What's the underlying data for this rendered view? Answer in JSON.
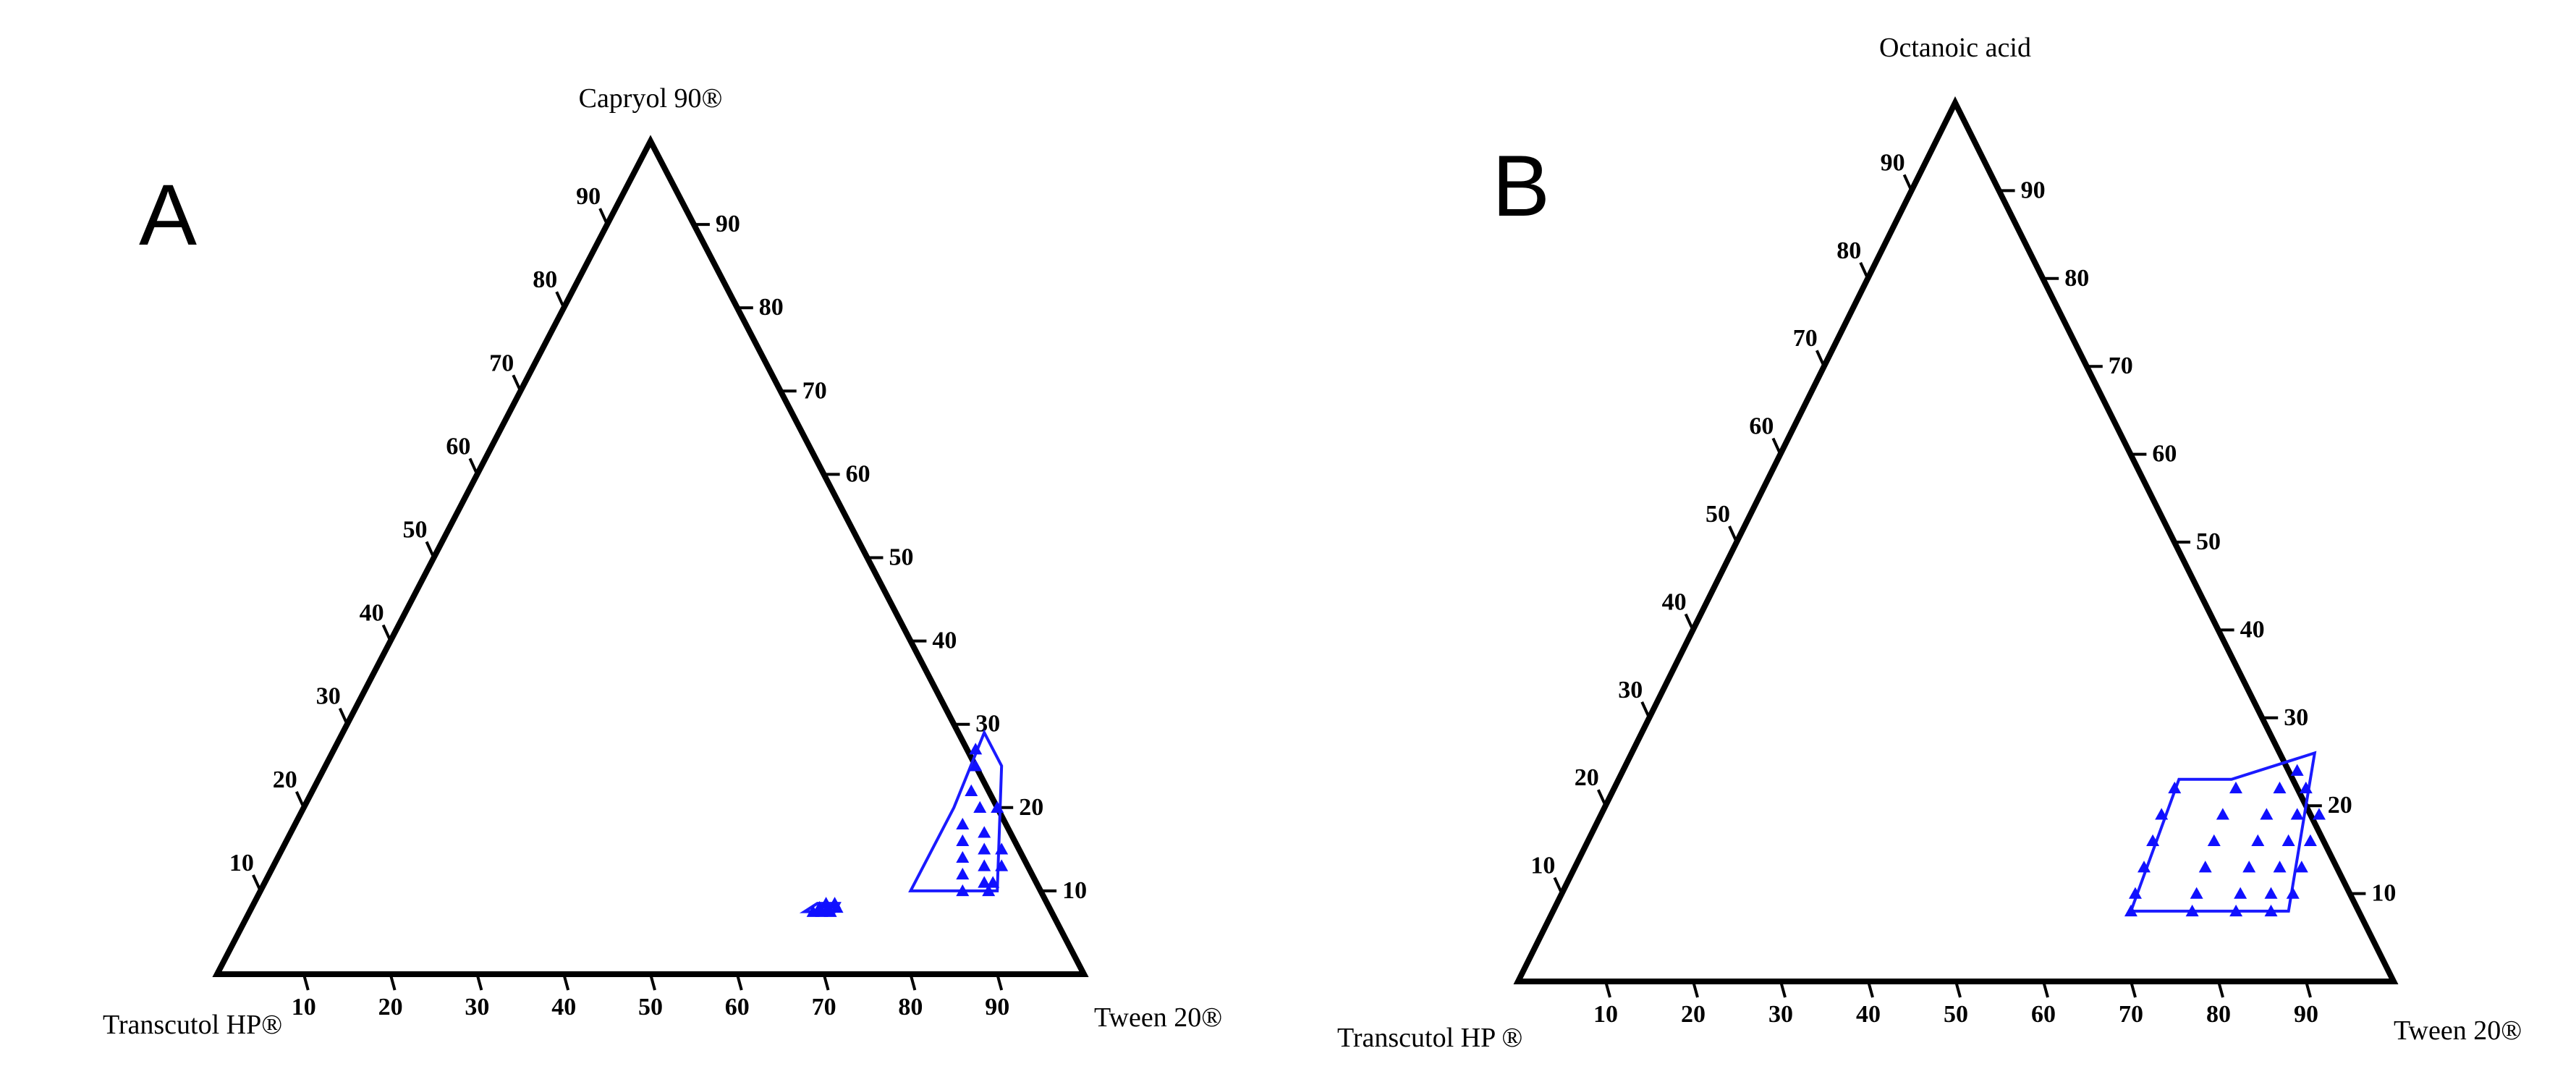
{
  "chart_data": [
    {
      "type": "ternary",
      "panel_label": "A",
      "axes": {
        "top": "Capryol 90®",
        "left": "Transcutol HP®",
        "right": "Tween 20®"
      },
      "ticks": [
        10,
        20,
        30,
        40,
        50,
        60,
        70,
        80,
        90
      ],
      "regions": [
        {
          "boundary": [
            [
              7.5,
              64
            ],
            [
              8.5,
              65
            ],
            [
              8.5,
              67.5
            ],
            [
              7.5,
              67.5
            ]
          ],
          "points": [
            [
              7.5,
              65
            ],
            [
              8,
              65.5
            ],
            [
              8.5,
              66
            ],
            [
              7.5,
              66
            ],
            [
              8,
              66.5
            ],
            [
              8.5,
              67
            ],
            [
              7.5,
              67
            ],
            [
              8,
              67.5
            ]
          ]
        },
        {
          "boundary": [
            [
              10,
              75
            ],
            [
              20,
              75
            ],
            [
              29,
              74
            ],
            [
              25,
              78
            ],
            [
              10,
              85
            ]
          ],
          "points": [
            [
              27,
              74
            ],
            [
              25,
              75
            ],
            [
              22,
              76
            ],
            [
              20,
              78
            ],
            [
              18,
              77
            ],
            [
              16,
              78
            ],
            [
              14,
              79
            ],
            [
              12,
              80
            ],
            [
              10,
              81
            ],
            [
              20,
              80
            ],
            [
              17,
              80
            ],
            [
              15,
              81
            ],
            [
              13,
              82
            ],
            [
              11,
              83
            ],
            [
              15,
              83
            ],
            [
              13,
              84
            ],
            [
              11,
              84
            ],
            [
              10,
              84
            ]
          ]
        }
      ]
    },
    {
      "type": "ternary",
      "panel_label": "B",
      "axes": {
        "top": "Octanoic acid",
        "left": "Transcutol HP ®",
        "right": "Tween 20®"
      },
      "ticks": [
        10,
        20,
        30,
        40,
        50,
        60,
        70,
        80,
        90
      ],
      "regions": [
        {
          "boundary": [
            [
              23,
              64
            ],
            [
              23,
              70
            ],
            [
              26,
              78
            ],
            [
              8,
              84
            ],
            [
              8,
              66
            ]
          ],
          "points": [
            [
              22,
              64
            ],
            [
              19,
              64
            ],
            [
              16,
              64.5
            ],
            [
              13,
              65
            ],
            [
              10,
              65.5
            ],
            [
              8,
              66
            ],
            [
              22,
              71
            ],
            [
              19,
              71
            ],
            [
              16,
              71.5
            ],
            [
              13,
              72
            ],
            [
              10,
              72.5
            ],
            [
              8,
              73
            ],
            [
              24,
              77
            ],
            [
              22,
              76
            ],
            [
              19,
              76
            ],
            [
              16,
              76.5
            ],
            [
              13,
              77
            ],
            [
              10,
              77.5
            ],
            [
              8,
              78
            ],
            [
              22,
              79
            ],
            [
              19,
              79.5
            ],
            [
              16,
              80
            ],
            [
              13,
              80.5
            ],
            [
              10,
              81
            ],
            [
              8,
              82
            ],
            [
              19,
              82
            ],
            [
              16,
              82.5
            ],
            [
              13,
              83
            ],
            [
              10,
              83.5
            ]
          ]
        }
      ]
    }
  ]
}
